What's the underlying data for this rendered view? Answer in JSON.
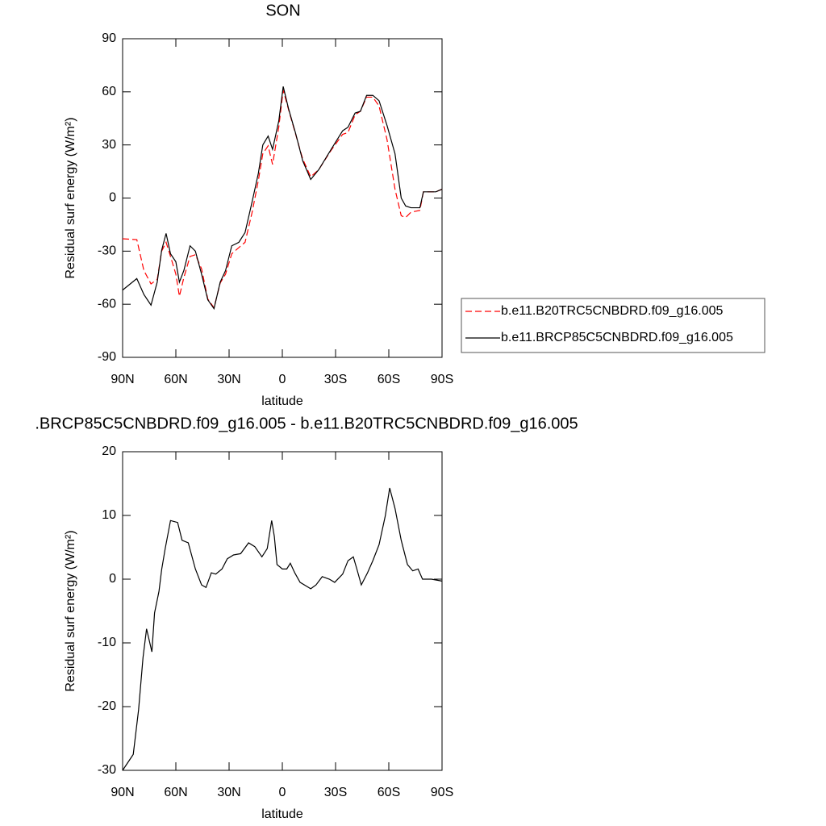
{
  "chart_data": [
    {
      "type": "line",
      "title": "SON",
      "xlabel": "latitude",
      "ylabel": "Residual surf energy (W/m²)",
      "xlim": [
        90,
        -90
      ],
      "xticks": [
        {
          "value": 90,
          "label": "90N"
        },
        {
          "value": 60,
          "label": "60N"
        },
        {
          "value": 30,
          "label": "30N"
        },
        0,
        {
          "value": -30,
          "label": "30S"
        },
        {
          "value": -60,
          "label": "60S"
        },
        {
          "value": -90,
          "label": "90S"
        }
      ],
      "ylim": [
        -90,
        90
      ],
      "yticks": [
        -90,
        -60,
        -30,
        0,
        30,
        60,
        90
      ],
      "legend": "right",
      "x": [
        90,
        82,
        78,
        74,
        70.5,
        68,
        65.5,
        63,
        60,
        58,
        55.5,
        52,
        49,
        45.5,
        42,
        38.5,
        35,
        32,
        28.5,
        24.5,
        21,
        17,
        13.5,
        11,
        8,
        5.5,
        2,
        -0.5,
        -3.5,
        -7.5,
        -11.5,
        -16,
        -20.5,
        -27.5,
        -34,
        -37,
        -41,
        -44,
        -47.5,
        -51,
        -54.5,
        -59,
        -63.5,
        -67,
        -69.5,
        -72.5,
        -77.5,
        -79.5,
        -86.5,
        -90
      ],
      "series": [
        {
          "name": "b.e11.B20TRC5CNBDRD.f09_g16.005",
          "color": "#ff0000",
          "line_style": "dashed",
          "values": [
            -23,
            -23.5,
            -41,
            -48.5,
            -46,
            -30,
            -25,
            -33,
            -43,
            -55.5,
            -45,
            -33,
            -32,
            -40,
            -57,
            -62,
            -48,
            -43,
            -31.5,
            -28,
            -25,
            -8,
            10,
            25,
            29.5,
            19,
            40,
            61,
            50,
            36,
            22,
            12,
            16,
            27,
            36,
            37,
            47,
            49,
            57,
            57,
            52,
            33,
            5,
            -10,
            -11,
            -8,
            -7,
            3.5,
            3.5,
            5
          ]
        },
        {
          "name": "b.e11.BRCP85C5CNBDRD.f09_g16.005",
          "color": "#000000",
          "line_style": "solid",
          "values": [
            -52,
            -45.5,
            -54.5,
            -60.5,
            -47.5,
            -29.5,
            -20,
            -31.5,
            -36,
            -47.5,
            -41,
            -27,
            -30,
            -43,
            -57.5,
            -62.5,
            -47.5,
            -41,
            -27,
            -25,
            -19.5,
            -2,
            14,
            30,
            35,
            27.5,
            43.5,
            63,
            50.5,
            36.5,
            21,
            10.5,
            16,
            27.5,
            38,
            40,
            48,
            49,
            58,
            58,
            55,
            41,
            25,
            0,
            -4.5,
            -5.5,
            -5.5,
            3.5,
            3.5,
            5
          ]
        }
      ]
    },
    {
      "type": "line",
      "title": ".BRCP85C5CNBDRD.f09_g16.005 - b.e11.B20TRC5CNBDRD.f09_g16.005",
      "xlabel": "latitude",
      "ylabel": "Residual surf energy (W/m²)",
      "xlim": [
        90,
        -90
      ],
      "xticks": [
        {
          "value": 90,
          "label": "90N"
        },
        {
          "value": 60,
          "label": "60N"
        },
        {
          "value": 30,
          "label": "30N"
        },
        0,
        {
          "value": -30,
          "label": "30S"
        },
        {
          "value": -60,
          "label": "60S"
        },
        {
          "value": -90,
          "label": "90S"
        }
      ],
      "ylim": [
        -30,
        20
      ],
      "yticks": [
        -30,
        -20,
        -10,
        0,
        10,
        20
      ],
      "color": "#000000",
      "x": [
        90,
        84,
        81,
        78.5,
        76.5,
        73.5,
        72,
        69.5,
        68,
        66,
        63,
        59,
        56.5,
        53,
        49,
        45.5,
        43,
        40,
        37.5,
        34,
        31,
        27.5,
        23.5,
        19,
        15.5,
        11.5,
        8.5,
        6,
        4.5,
        3,
        0,
        -2.5,
        -4.5,
        -7,
        -10,
        -16,
        -19,
        -22.5,
        -26.5,
        -29.5,
        -34,
        -37,
        -40,
        -42,
        -44.5,
        -48,
        -51,
        -54.5,
        -58,
        -60.5,
        -63.5,
        -67,
        -70.5,
        -73.5,
        -76.5,
        -79,
        -84,
        -90
      ],
      "values": [
        -30,
        -27.5,
        -20.5,
        -12.3,
        -7.8,
        -11.4,
        -5.3,
        -1.9,
        1.5,
        4.8,
        9.2,
        8.9,
        6.1,
        5.7,
        1.6,
        -0.9,
        -1.3,
        1,
        0.8,
        1.6,
        3.2,
        3.8,
        4,
        5.7,
        5.1,
        3.5,
        4.8,
        9.2,
        6.7,
        2.3,
        1.6,
        1.6,
        2.5,
        1,
        -0.5,
        -1.5,
        -0.9,
        0.4,
        0,
        -0.5,
        0.8,
        2.9,
        3.5,
        1.6,
        -0.9,
        1,
        2.9,
        5.4,
        9.9,
        14.3,
        11.1,
        6.1,
        2.3,
        1.3,
        1.6,
        0,
        0,
        -0.3
      ]
    }
  ]
}
